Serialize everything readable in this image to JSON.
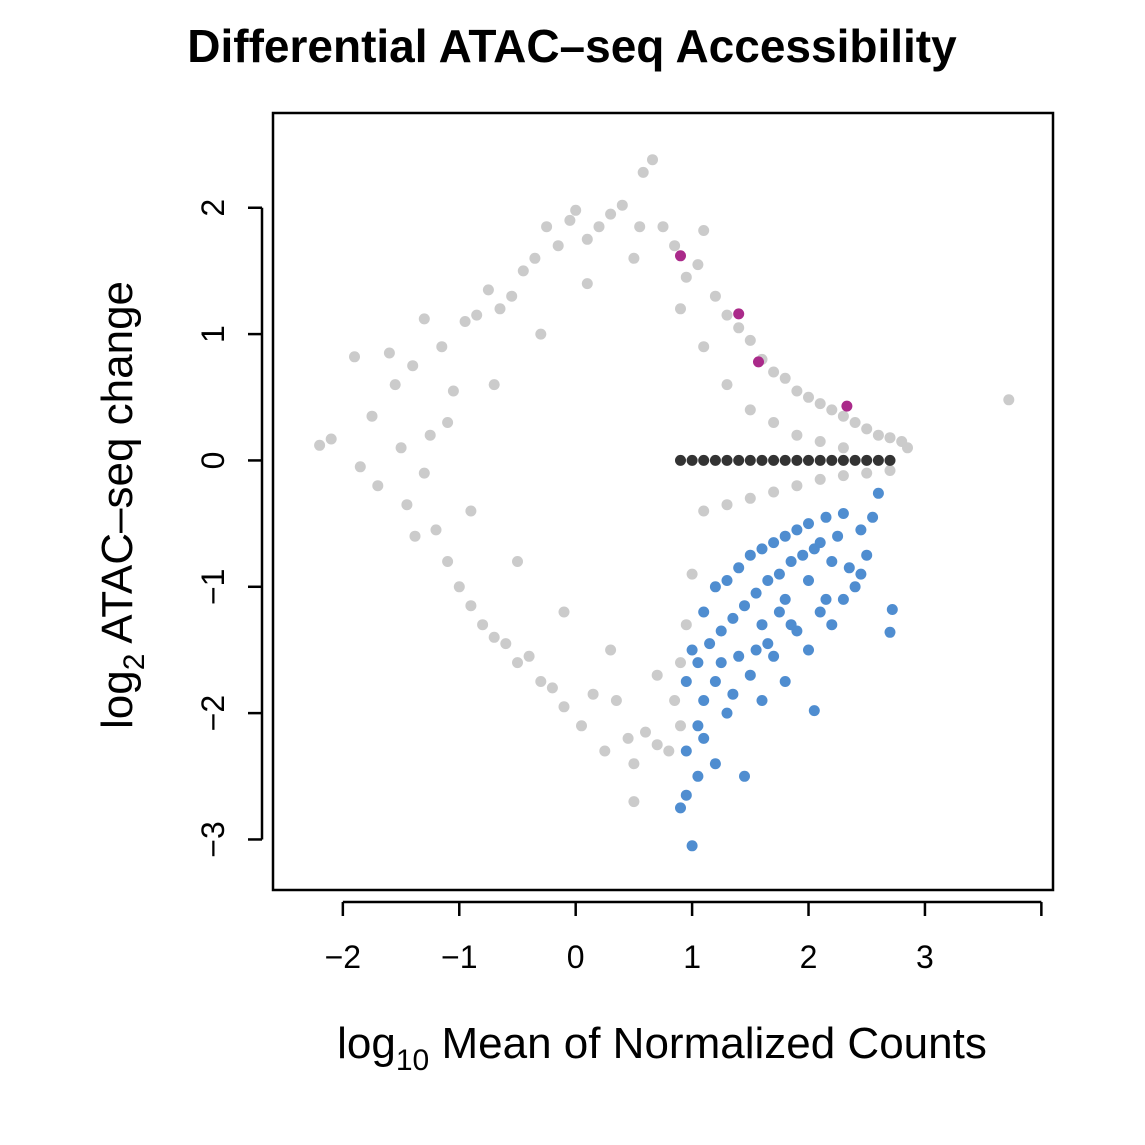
{
  "chart_data": {
    "type": "scatter",
    "title": "Differential ATAC–seq Accessibility",
    "xlabel": {
      "prefix": "log",
      "subscript": "10",
      "text": " Mean of Normalized Counts"
    },
    "ylabel": {
      "prefix": "log",
      "subscript": "2",
      "text": " ATAC–seq change"
    },
    "xlim": [
      -2.6,
      4.1
    ],
    "ylim": [
      -3.4,
      2.75
    ],
    "x_ticks": [
      {
        "value": -2,
        "label": "−2"
      },
      {
        "value": -1,
        "label": "−1"
      },
      {
        "value": 0,
        "label": "0"
      },
      {
        "value": 1,
        "label": "1"
      },
      {
        "value": 2,
        "label": "2"
      },
      {
        "value": 3,
        "label": "3"
      },
      {
        "value": 4,
        "label": ""
      }
    ],
    "y_ticks": [
      {
        "value": -3,
        "label": "−3"
      },
      {
        "value": -2,
        "label": "−2"
      },
      {
        "value": -1,
        "label": "−1"
      },
      {
        "value": 0,
        "label": "0"
      },
      {
        "value": 1,
        "label": "1"
      },
      {
        "value": 2,
        "label": "2"
      }
    ],
    "grid": false,
    "legend": "none",
    "series": [
      {
        "color": "#CBCBCB",
        "points": [
          [
            -2.2,
            0.12
          ],
          [
            -2.1,
            0.17
          ],
          [
            -1.9,
            0.82
          ],
          [
            -1.85,
            -0.05
          ],
          [
            -1.75,
            0.35
          ],
          [
            -1.7,
            -0.2
          ],
          [
            -1.6,
            0.85
          ],
          [
            -1.55,
            0.6
          ],
          [
            -1.45,
            -0.35
          ],
          [
            -1.4,
            0.75
          ],
          [
            -1.38,
            -0.6
          ],
          [
            -1.3,
            1.12
          ],
          [
            -1.25,
            0.2
          ],
          [
            -1.2,
            -0.55
          ],
          [
            -1.15,
            0.9
          ],
          [
            -1.1,
            -0.8
          ],
          [
            -1.05,
            0.55
          ],
          [
            -1.0,
            -1.0
          ],
          [
            -0.95,
            1.1
          ],
          [
            -0.9,
            -1.15
          ],
          [
            -0.85,
            1.15
          ],
          [
            -0.8,
            -1.3
          ],
          [
            -0.75,
            1.35
          ],
          [
            -0.7,
            -1.4
          ],
          [
            -0.65,
            1.2
          ],
          [
            -0.6,
            -1.45
          ],
          [
            -0.55,
            1.3
          ],
          [
            -0.5,
            -1.6
          ],
          [
            -0.45,
            1.5
          ],
          [
            -0.4,
            -1.55
          ],
          [
            -0.35,
            1.6
          ],
          [
            -0.3,
            -1.75
          ],
          [
            -0.25,
            1.85
          ],
          [
            -0.2,
            -1.8
          ],
          [
            -0.15,
            1.7
          ],
          [
            -0.1,
            -1.95
          ],
          [
            -0.05,
            1.9
          ],
          [
            0.0,
            1.98
          ],
          [
            0.05,
            -2.1
          ],
          [
            0.1,
            1.75
          ],
          [
            0.15,
            -1.85
          ],
          [
            0.2,
            1.85
          ],
          [
            0.25,
            -2.3
          ],
          [
            0.3,
            1.95
          ],
          [
            0.35,
            -1.9
          ],
          [
            0.4,
            2.02
          ],
          [
            0.45,
            -2.2
          ],
          [
            0.5,
            -2.7
          ],
          [
            0.5,
            -2.4
          ],
          [
            0.55,
            1.85
          ],
          [
            0.58,
            2.28
          ],
          [
            0.6,
            -2.15
          ],
          [
            0.66,
            2.38
          ],
          [
            0.7,
            -2.25
          ],
          [
            0.75,
            1.85
          ],
          [
            0.8,
            -2.3
          ],
          [
            0.85,
            1.7
          ],
          [
            0.9,
            -2.1
          ],
          [
            0.95,
            1.45
          ],
          [
            1.05,
            1.55
          ],
          [
            1.1,
            1.82
          ],
          [
            1.2,
            1.3
          ],
          [
            1.3,
            1.15
          ],
          [
            1.4,
            1.05
          ],
          [
            1.5,
            0.95
          ],
          [
            1.6,
            0.8
          ],
          [
            1.7,
            0.7
          ],
          [
            1.8,
            0.65
          ],
          [
            1.9,
            0.55
          ],
          [
            2.0,
            0.5
          ],
          [
            2.1,
            0.45
          ],
          [
            2.2,
            0.4
          ],
          [
            2.3,
            0.35
          ],
          [
            2.4,
            0.3
          ],
          [
            2.5,
            0.25
          ],
          [
            2.6,
            0.2
          ],
          [
            2.7,
            0.18
          ],
          [
            2.8,
            0.15
          ],
          [
            2.85,
            0.1
          ],
          [
            3.72,
            0.48
          ],
          [
            1.1,
            -0.4
          ],
          [
            1.3,
            -0.35
          ],
          [
            1.5,
            -0.3
          ],
          [
            1.7,
            -0.25
          ],
          [
            1.9,
            -0.2
          ],
          [
            2.1,
            -0.15
          ],
          [
            2.3,
            -0.12
          ],
          [
            2.5,
            -0.1
          ],
          [
            2.7,
            -0.08
          ],
          [
            1.0,
            -0.9
          ],
          [
            0.95,
            -1.3
          ],
          [
            0.9,
            -1.6
          ],
          [
            0.85,
            -1.9
          ],
          [
            -1.5,
            0.1
          ],
          [
            -1.3,
            -0.1
          ],
          [
            -1.1,
            0.3
          ],
          [
            -0.9,
            -0.4
          ],
          [
            -0.7,
            0.6
          ],
          [
            -0.5,
            -0.8
          ],
          [
            -0.3,
            1.0
          ],
          [
            -0.1,
            -1.2
          ],
          [
            0.1,
            1.4
          ],
          [
            0.3,
            -1.5
          ],
          [
            0.5,
            1.6
          ],
          [
            0.7,
            -1.7
          ],
          [
            0.9,
            1.2
          ],
          [
            1.1,
            0.9
          ],
          [
            1.3,
            0.6
          ],
          [
            1.5,
            0.4
          ],
          [
            1.7,
            0.3
          ],
          [
            1.9,
            0.2
          ],
          [
            2.1,
            0.15
          ],
          [
            2.3,
            0.1
          ]
        ]
      },
      {
        "color": "#333333",
        "points": [
          [
            0.9,
            0.0
          ],
          [
            1.0,
            0.0
          ],
          [
            1.1,
            0.0
          ],
          [
            1.2,
            0.0
          ],
          [
            1.3,
            0.0
          ],
          [
            1.4,
            0.0
          ],
          [
            1.5,
            0.0
          ],
          [
            1.6,
            0.0
          ],
          [
            1.7,
            0.0
          ],
          [
            1.8,
            0.0
          ],
          [
            1.9,
            0.0
          ],
          [
            2.0,
            0.0
          ],
          [
            2.1,
            0.0
          ],
          [
            2.2,
            0.0
          ],
          [
            2.3,
            0.0
          ],
          [
            2.4,
            0.0
          ],
          [
            2.5,
            0.0
          ],
          [
            2.6,
            0.0
          ],
          [
            2.7,
            0.0
          ]
        ]
      },
      {
        "color": "#AA2A8A",
        "points": [
          [
            0.9,
            1.62
          ],
          [
            1.4,
            1.16
          ],
          [
            1.57,
            0.78
          ],
          [
            2.33,
            0.43
          ]
        ]
      },
      {
        "color": "#4F8DD0",
        "points": [
          [
            0.9,
            -2.75
          ],
          [
            0.95,
            -2.65
          ],
          [
            1.0,
            -3.05
          ],
          [
            1.05,
            -2.5
          ],
          [
            1.1,
            -2.2
          ],
          [
            1.2,
            -2.4
          ],
          [
            1.3,
            -2.0
          ],
          [
            1.35,
            -1.85
          ],
          [
            1.45,
            -2.5
          ],
          [
            1.5,
            -1.7
          ],
          [
            1.6,
            -1.9
          ],
          [
            1.7,
            -1.55
          ],
          [
            1.8,
            -1.75
          ],
          [
            1.9,
            -1.35
          ],
          [
            2.0,
            -1.5
          ],
          [
            2.05,
            -1.98
          ],
          [
            2.1,
            -1.2
          ],
          [
            2.2,
            -1.3
          ],
          [
            2.3,
            -1.1
          ],
          [
            2.35,
            -0.85
          ],
          [
            2.4,
            -1.0
          ],
          [
            2.5,
            -0.75
          ],
          [
            2.6,
            -0.26
          ],
          [
            2.72,
            -1.18
          ],
          [
            2.7,
            -1.36
          ],
          [
            2.55,
            -0.45
          ],
          [
            2.45,
            -0.55
          ],
          [
            1.0,
            -1.5
          ],
          [
            1.1,
            -1.2
          ],
          [
            1.2,
            -1.0
          ],
          [
            1.3,
            -0.95
          ],
          [
            1.4,
            -0.85
          ],
          [
            1.5,
            -0.75
          ],
          [
            1.6,
            -0.7
          ],
          [
            1.7,
            -0.65
          ],
          [
            1.8,
            -0.6
          ],
          [
            1.9,
            -0.55
          ],
          [
            2.0,
            -0.5
          ],
          [
            2.15,
            -0.45
          ],
          [
            2.3,
            -0.42
          ],
          [
            0.95,
            -1.75
          ],
          [
            1.05,
            -1.6
          ],
          [
            1.15,
            -1.45
          ],
          [
            1.25,
            -1.35
          ],
          [
            1.35,
            -1.25
          ],
          [
            1.45,
            -1.15
          ],
          [
            1.55,
            -1.05
          ],
          [
            1.65,
            -0.95
          ],
          [
            1.75,
            -0.9
          ],
          [
            1.85,
            -0.8
          ],
          [
            1.95,
            -0.75
          ],
          [
            2.05,
            -0.7
          ],
          [
            2.25,
            -0.6
          ],
          [
            1.2,
            -1.75
          ],
          [
            1.4,
            -1.55
          ],
          [
            1.6,
            -1.3
          ],
          [
            1.8,
            -1.1
          ],
          [
            2.0,
            -0.95
          ],
          [
            2.2,
            -0.8
          ],
          [
            1.1,
            -1.9
          ],
          [
            0.95,
            -2.3
          ],
          [
            1.05,
            -2.1
          ],
          [
            1.25,
            -1.6
          ],
          [
            1.55,
            -1.5
          ],
          [
            1.85,
            -1.3
          ],
          [
            2.15,
            -1.1
          ],
          [
            2.45,
            -0.9
          ],
          [
            1.75,
            -1.2
          ],
          [
            1.65,
            -1.45
          ],
          [
            2.1,
            -0.65
          ]
        ]
      }
    ]
  }
}
